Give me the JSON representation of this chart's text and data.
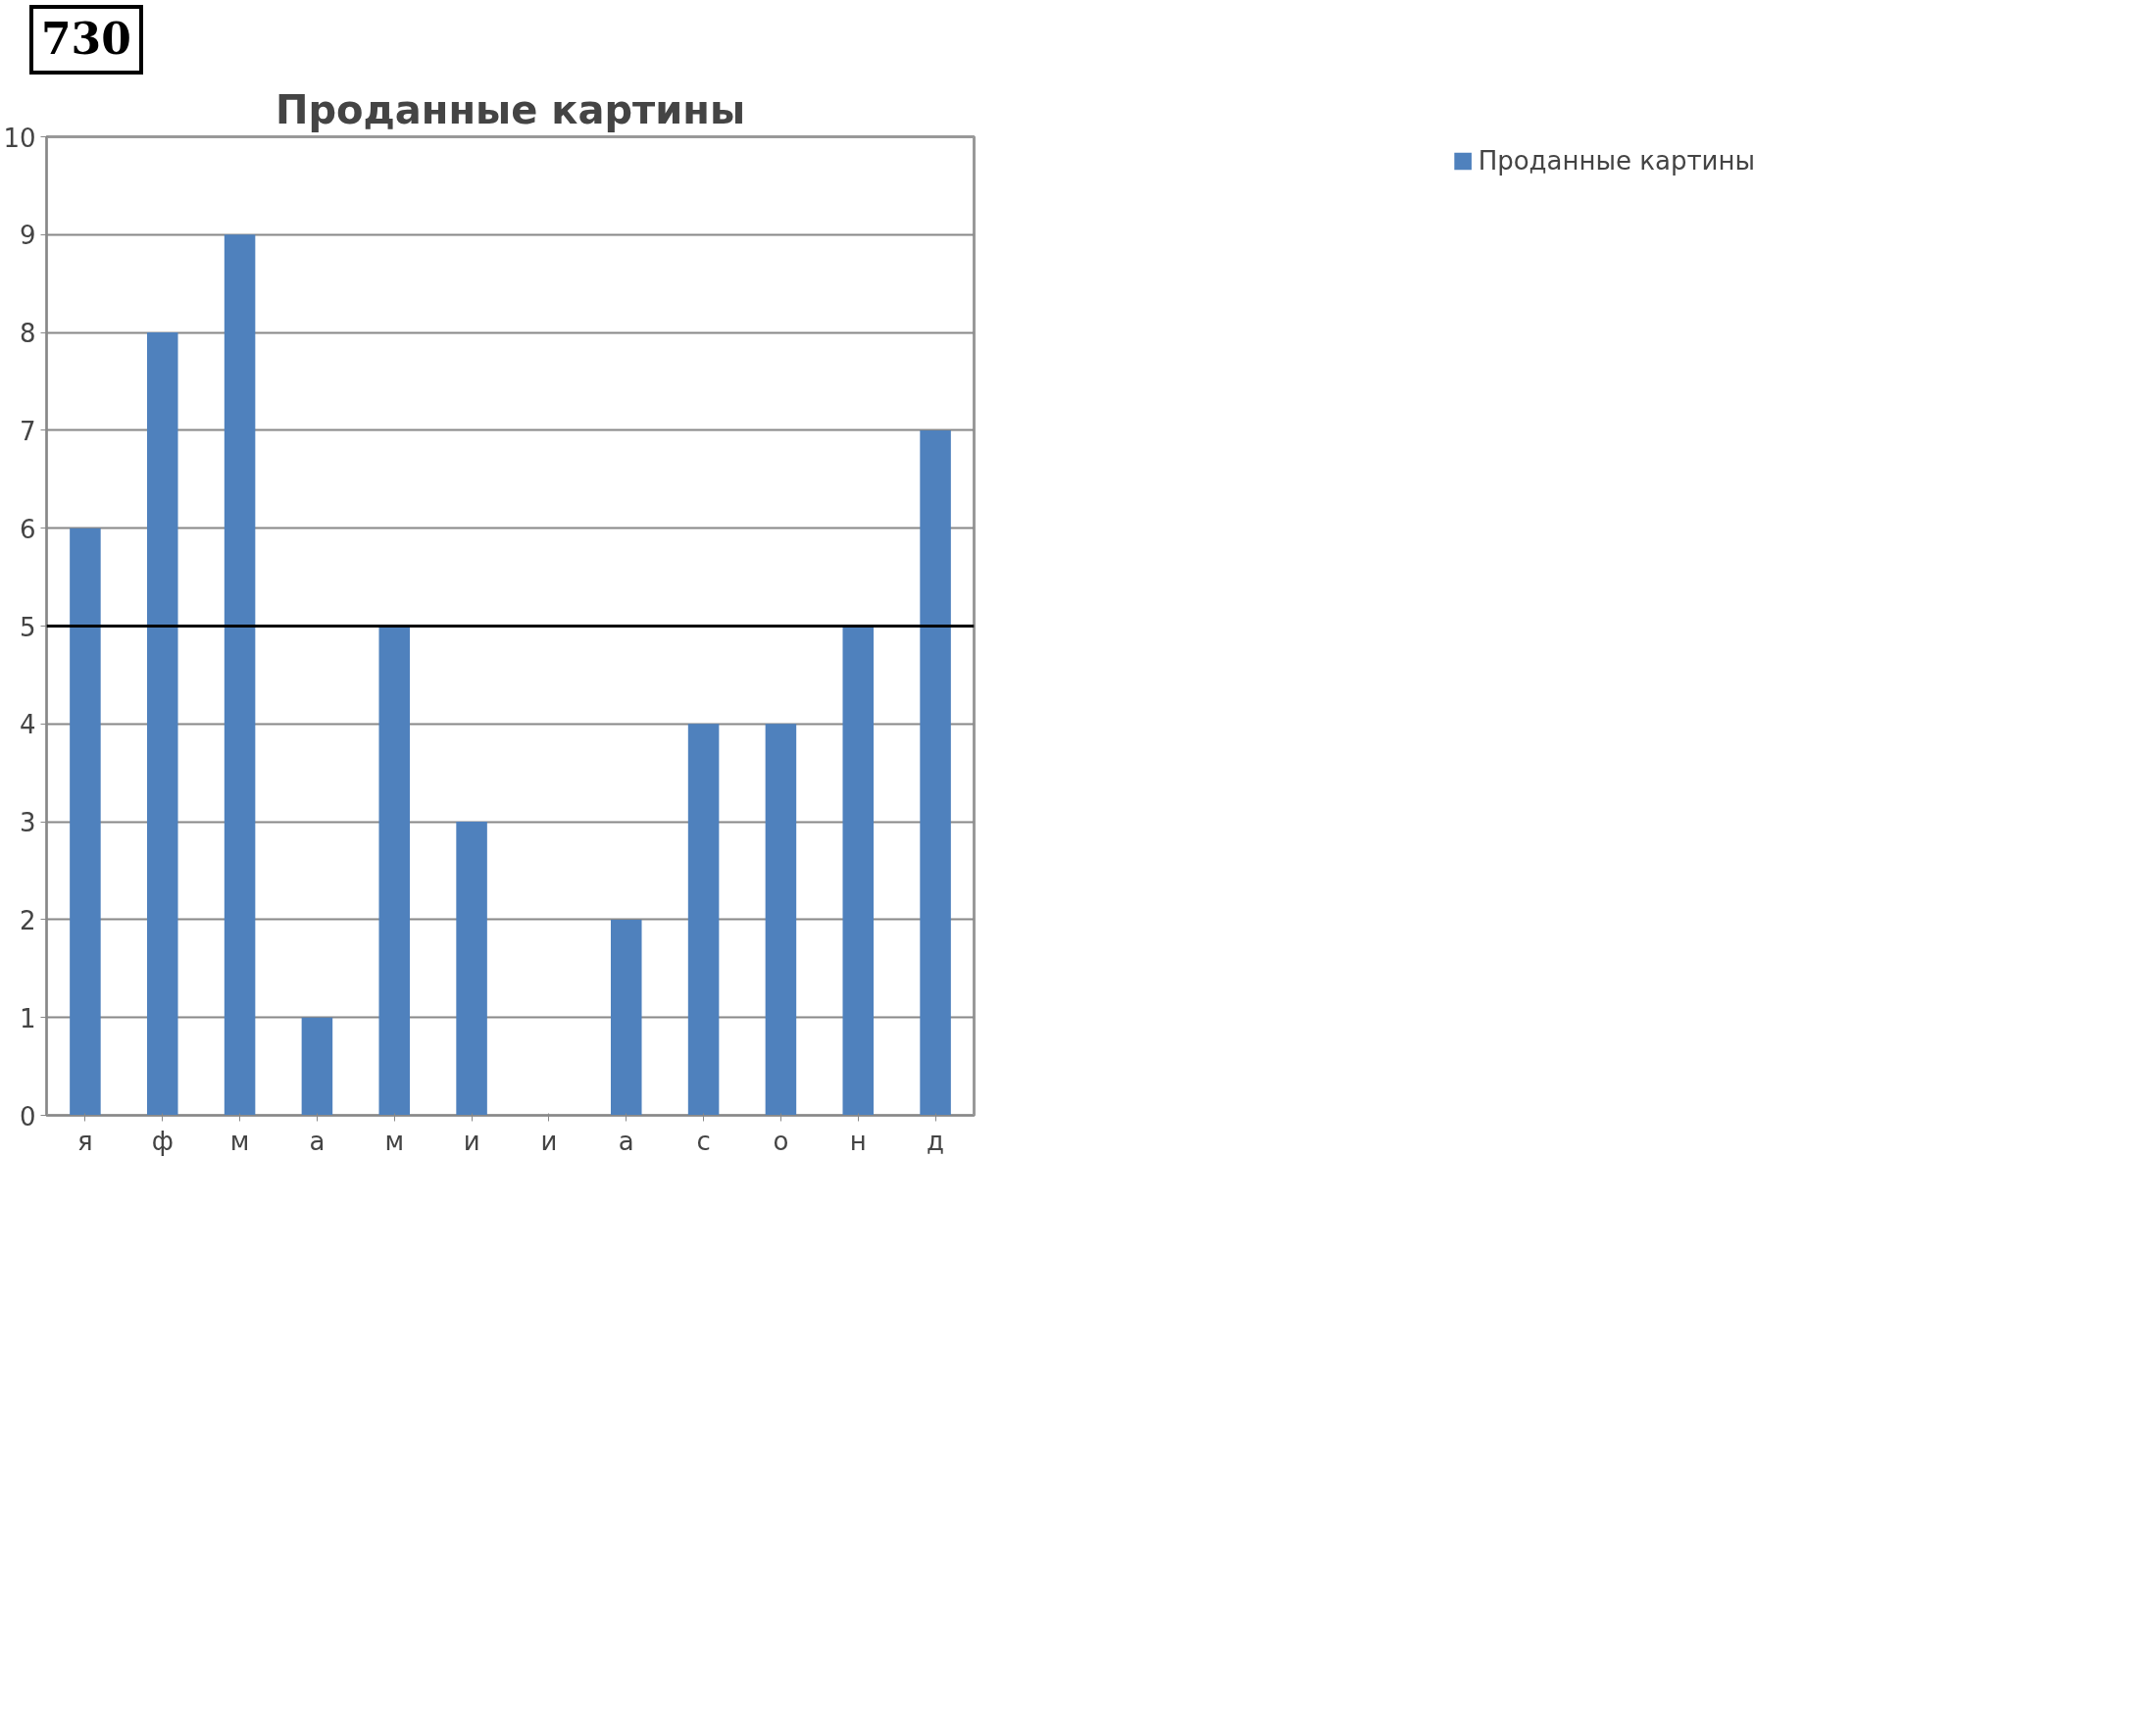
{
  "chart_data": {
    "type": "bar",
    "title": "Проданные картины",
    "annotations": [
      "730"
    ],
    "categories": [
      "я",
      "ф",
      "м",
      "а",
      "м",
      "и",
      "и",
      "а",
      "с",
      "о",
      "н",
      "д"
    ],
    "series": [
      {
        "name": "Проданные картины",
        "color": "#4f81bd",
        "values": [
          6,
          8,
          9,
          1,
          5,
          3,
          0,
          2,
          4,
          4,
          5,
          7
        ]
      }
    ],
    "ylim": [
      0,
      10
    ],
    "yticks": [
      0,
      1,
      2,
      3,
      4,
      5,
      6,
      7,
      8,
      9,
      10
    ],
    "grid": "y",
    "legend": "right",
    "ref_lines": [
      {
        "axis": "y",
        "value": 5,
        "color": "#000000"
      }
    ]
  }
}
